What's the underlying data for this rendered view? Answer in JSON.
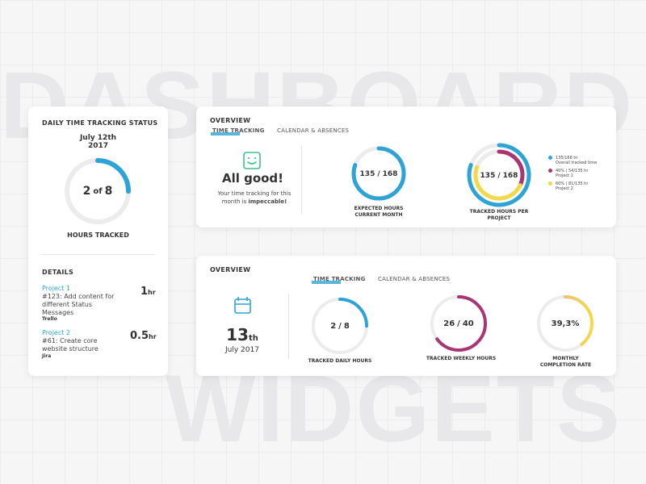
{
  "background": {
    "top_word": "DASHBOARD",
    "bottom_word": "WIDGETS"
  },
  "daily_status": {
    "title": "DAILY TIME TRACKING STATUS",
    "date_line1": "July 12th",
    "date_line2": "2017",
    "progress": {
      "done": 2,
      "sep": "of",
      "total": 8,
      "color": "#2ea3d6"
    },
    "caption": "HOURS TRACKED",
    "details_title": "DETAILS",
    "projects": [
      {
        "name": "Project 1",
        "task": "#123: Add content for different Status Messages",
        "board": "Trello",
        "amount": 1,
        "unit": "hr"
      },
      {
        "name": "Project 2",
        "task": "#61: Create core website structure",
        "board": "Jira",
        "amount": 0.5,
        "unit": "hr"
      }
    ]
  },
  "overview_top": {
    "title": "OVERVIEW",
    "tabs": [
      "TIME TRACKING",
      "CALENDAR & ABSENCES"
    ],
    "status_title": "All good!",
    "status_text": "Your time tracking for this month is",
    "status_text_bold": "impeccable!",
    "expected": {
      "done": 135,
      "sep": "/",
      "total": 168,
      "color": "#2ea3d6",
      "caption": "EXPECTED HOURS CURRENT MONTH"
    },
    "projects_ring": {
      "center": {
        "done": 135,
        "sep": "/",
        "total": 168
      },
      "caption": "TRACKED HOURS PER PROJECT",
      "legend": [
        {
          "label": "135/168 hr",
          "sub": "Overall tracked time",
          "color": "#2ea3d6"
        },
        {
          "label": "40% | 54/135 hr",
          "sub": "Project 1",
          "color": "#a93673",
          "share": 40
        },
        {
          "label": "60% | 81/135 hr",
          "sub": "Project 2",
          "color": "#f2d94a",
          "share": 60
        }
      ]
    }
  },
  "overview_bottom": {
    "title": "OVERVIEW",
    "tabs": [
      "TIME TRACKING",
      "CALENDAR & ABSENCES"
    ],
    "day_number": 13,
    "day_suffix": "th",
    "month_year": "July 2017",
    "daily": {
      "done": 2,
      "sep": "/",
      "total": 8,
      "color": "#2ea3d6",
      "caption": "TRACKED DAILY HOURS"
    },
    "weekly": {
      "done": 26,
      "sep": "/",
      "total": 40,
      "color": "#a93673",
      "caption": "TRACKED WEEKLY HOURS"
    },
    "monthly": {
      "value": 39.3,
      "label": "39,3%",
      "color": "#f2d94a",
      "caption": "MONTHLY COMPLETION RATE"
    }
  }
}
